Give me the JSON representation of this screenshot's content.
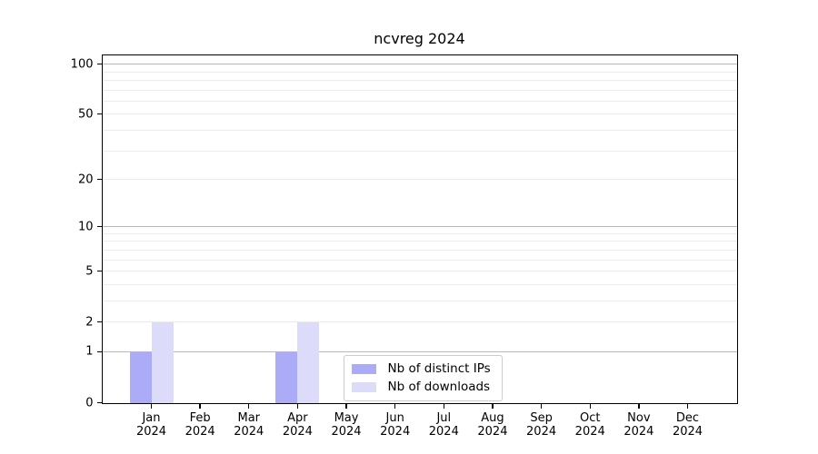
{
  "chart_data": {
    "type": "bar",
    "title": "ncvreg 2024",
    "categories": [
      "Jan",
      "Feb",
      "Mar",
      "Apr",
      "May",
      "Jun",
      "Jul",
      "Aug",
      "Sep",
      "Oct",
      "Nov",
      "Dec"
    ],
    "category_year": "2024",
    "series": [
      {
        "name": "Nb of distinct IPs",
        "color": "#ababf8",
        "values": [
          1,
          0,
          0,
          1,
          0,
          0,
          0,
          0,
          0,
          0,
          0,
          0
        ]
      },
      {
        "name": "Nb of downloads",
        "color": "#dcdcfa",
        "values": [
          2,
          0,
          0,
          2,
          0,
          0,
          0,
          0,
          0,
          0,
          0,
          0
        ]
      }
    ],
    "y_axis": {
      "scale": "log10(1+x)",
      "tick_values": [
        0,
        1,
        2,
        5,
        10,
        20,
        50,
        100
      ],
      "major_grid_values": [
        1,
        10,
        100
      ],
      "minor_grid_values": [
        2,
        3,
        4,
        5,
        6,
        7,
        8,
        9,
        20,
        30,
        40,
        50,
        60,
        70,
        80,
        90
      ],
      "ylim": [
        0,
        113
      ]
    },
    "legend": {
      "position": "lower center"
    },
    "colors": {
      "axis": "#000000",
      "major_grid": "#b9b9b9",
      "minor_grid": "#ebebeb",
      "legend_border": "#cccccc",
      "background": "#ffffff"
    }
  }
}
